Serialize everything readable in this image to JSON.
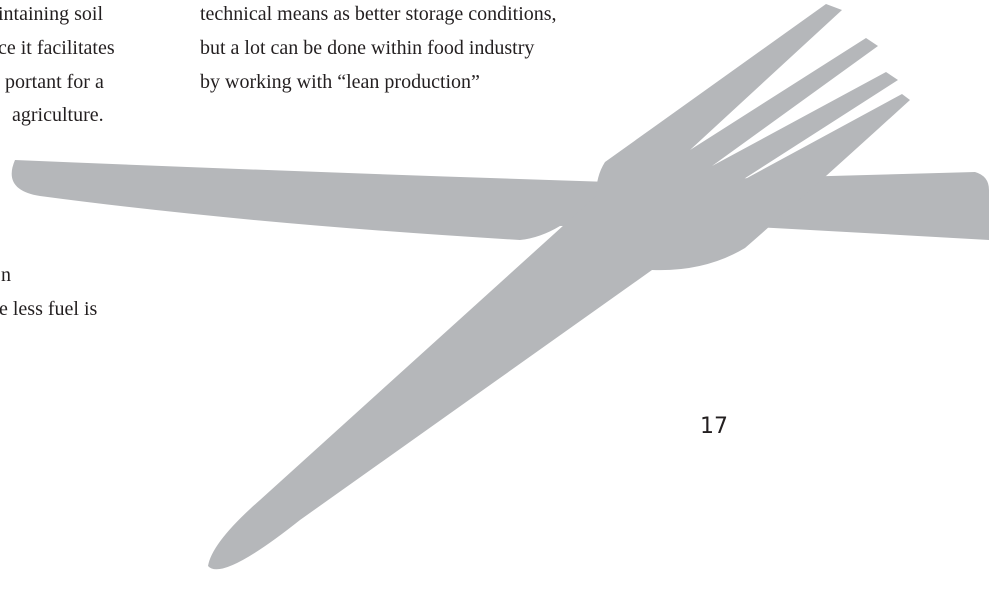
{
  "left_column": {
    "lines": [
      "intaining soil",
      "ce it facilitates",
      "portant for a",
      "agriculture."
    ]
  },
  "left_column_lower": {
    "lines": [
      "n",
      "e less fuel is"
    ]
  },
  "right_column": {
    "lines": [
      "technical means as better storage conditions,",
      "but a lot can be done within food industry",
      "by working with “lean production”"
    ]
  },
  "page_number": "17"
}
